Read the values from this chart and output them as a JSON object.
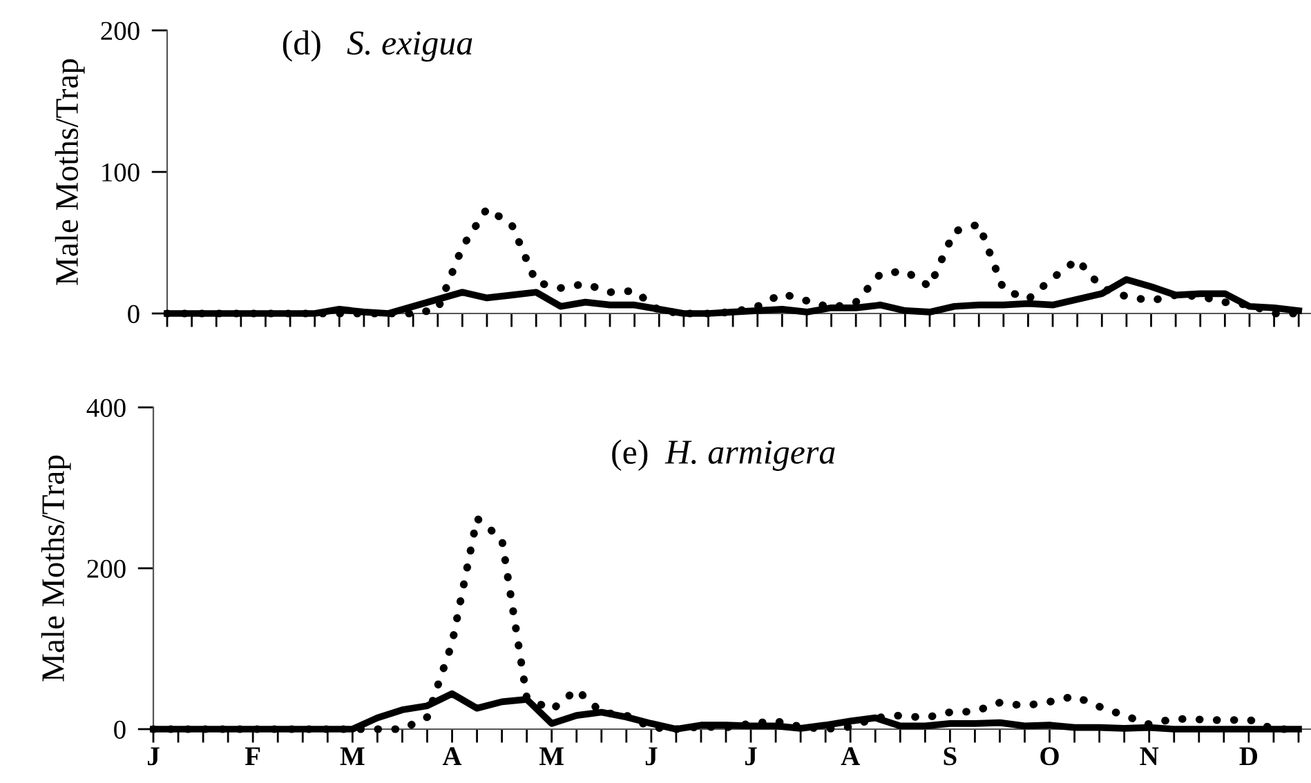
{
  "chart_data": [
    {
      "type": "line",
      "title": "(d)  S. exigua",
      "ylabel": "Male Moths/Trap",
      "ylim": [
        0,
        200
      ],
      "yticks": [
        0,
        100,
        200
      ],
      "tick_labels": "y",
      "grid": false,
      "marker": "none",
      "categories": [
        null,
        null,
        null,
        null,
        null,
        null,
        null,
        null,
        null,
        null,
        null,
        null,
        null,
        null,
        null,
        null,
        null,
        null,
        null,
        null,
        null,
        null,
        null,
        null,
        null,
        null,
        null,
        null,
        null,
        null,
        null,
        null,
        null,
        null,
        null,
        null,
        null,
        null,
        null,
        null,
        null,
        null,
        null,
        null,
        null,
        null,
        null
      ],
      "series": [
        {
          "color": "#000000",
          "line_style": "solid",
          "values": [
            0,
            0,
            0,
            0,
            0,
            0,
            0,
            3,
            1,
            0,
            5,
            10,
            15,
            11,
            13,
            15,
            5,
            8,
            6,
            6,
            3,
            0,
            0,
            1,
            2,
            3,
            1,
            4,
            4,
            6,
            2,
            1,
            5,
            6,
            6,
            7,
            6,
            10,
            14,
            24,
            19,
            13,
            14,
            14,
            5,
            4,
            2
          ]
        },
        {
          "color": "#000000",
          "line_style": "dotted",
          "values": [
            0,
            0,
            0,
            0,
            0,
            0,
            0,
            0,
            0,
            0,
            0,
            3,
            47,
            74,
            63,
            22,
            18,
            21,
            15,
            16,
            2,
            0,
            0,
            1,
            5,
            14,
            9,
            4,
            8,
            28,
            30,
            19,
            58,
            63,
            17,
            10,
            25,
            38,
            18,
            12,
            9,
            13,
            12,
            8,
            6,
            0,
            0
          ]
        }
      ]
    },
    {
      "type": "line",
      "title": "(e) H. armigera",
      "ylabel": "Male Moths/Trap",
      "ylim": [
        0,
        400
      ],
      "yticks": [
        0,
        200,
        400
      ],
      "grid": false,
      "marker": "none",
      "categories": [
        "J",
        null,
        null,
        null,
        "F",
        null,
        null,
        null,
        "M",
        null,
        null,
        null,
        "A",
        null,
        null,
        null,
        "M",
        null,
        null,
        null,
        "J",
        null,
        null,
        null,
        "J",
        null,
        null,
        null,
        "A",
        null,
        null,
        null,
        "S",
        null,
        null,
        null,
        "O",
        null,
        null,
        null,
        "N",
        null,
        null,
        null,
        "D",
        null,
        null
      ],
      "series": [
        {
          "color": "#000000",
          "line_style": "solid",
          "values": [
            0,
            0,
            0,
            0,
            0,
            0,
            0,
            0,
            0,
            14,
            24,
            29,
            44,
            26,
            34,
            37,
            7,
            17,
            21,
            15,
            7,
            0,
            5,
            5,
            4,
            4,
            1,
            5,
            10,
            14,
            4,
            4,
            7,
            7,
            8,
            4,
            5,
            2,
            2,
            1,
            2,
            0,
            0,
            0,
            0,
            0,
            0
          ]
        },
        {
          "color": "#000000",
          "line_style": "dotted",
          "values": [
            0,
            0,
            0,
            0,
            0,
            0,
            0,
            0,
            0,
            0,
            0,
            15,
            107,
            262,
            236,
            39,
            24,
            49,
            21,
            17,
            2,
            0,
            3,
            2,
            7,
            10,
            3,
            0,
            3,
            14,
            17,
            14,
            21,
            22,
            33,
            29,
            34,
            41,
            28,
            17,
            6,
            13,
            12,
            11,
            12,
            0,
            0
          ]
        }
      ]
    }
  ]
}
